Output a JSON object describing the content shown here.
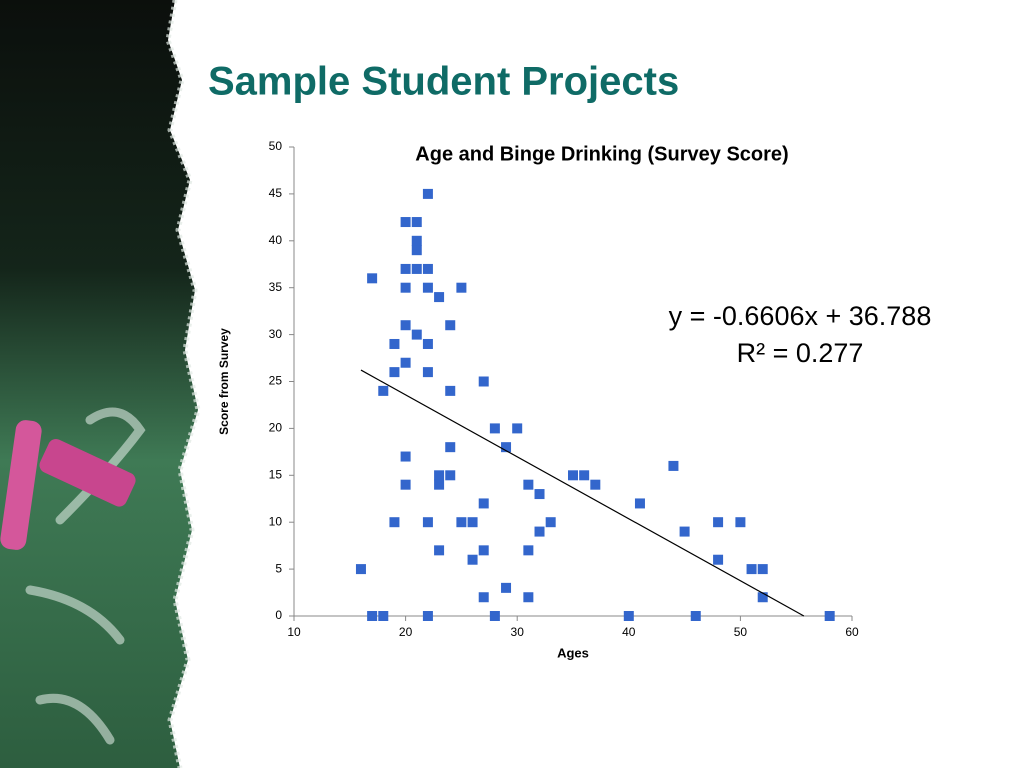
{
  "slide_title": "Sample Student Projects",
  "chart_data": {
    "type": "scatter",
    "title": "Age and Binge Drinking (Survey Score)",
    "x_label": "Ages",
    "y_label": "Score from Survey",
    "xlim": [
      10,
      60
    ],
    "xticks": [
      10,
      20,
      30,
      40,
      50,
      60
    ],
    "ylim": [
      0,
      50
    ],
    "yticks": [
      0,
      5,
      10,
      15,
      20,
      25,
      30,
      35,
      40,
      45,
      50
    ],
    "series": [
      {
        "color": "#3366cc",
        "x": [
          16,
          17,
          17,
          18,
          18,
          19,
          19,
          19,
          20,
          21,
          20,
          21,
          22,
          21,
          21,
          22,
          20,
          22,
          23,
          20,
          21,
          22,
          20,
          22,
          25,
          24,
          24,
          20,
          20,
          22,
          22,
          23,
          23,
          24,
          24,
          23,
          25,
          26,
          26,
          27,
          27,
          27,
          27,
          28,
          28,
          29,
          29,
          30,
          31,
          31,
          31,
          32,
          32,
          33,
          35,
          36,
          37,
          40,
          41,
          44,
          45,
          46,
          48,
          48,
          50,
          51,
          52,
          52,
          58
        ],
        "values": [
          5,
          36,
          0,
          0,
          24,
          10,
          26,
          29,
          42,
          42,
          37,
          37,
          37,
          40,
          39,
          45,
          35,
          35,
          34,
          31,
          30,
          29,
          27,
          26,
          35,
          31,
          24,
          17,
          14,
          10,
          0,
          15,
          14,
          15,
          18,
          7,
          10,
          10,
          6,
          25,
          12,
          7,
          2,
          20,
          0,
          18,
          3,
          20,
          14,
          7,
          2,
          13,
          9,
          10,
          15,
          15,
          14,
          0,
          12,
          16,
          9,
          0,
          10,
          6,
          10,
          5,
          5,
          2,
          0
        ]
      }
    ],
    "trendline": {
      "slope": -0.6606,
      "intercept": 36.788,
      "color": "#000000",
      "equation_label": "y = -0.6606x + 36.788",
      "r2": 0.277,
      "r2_label": "R² = 0.277"
    }
  }
}
